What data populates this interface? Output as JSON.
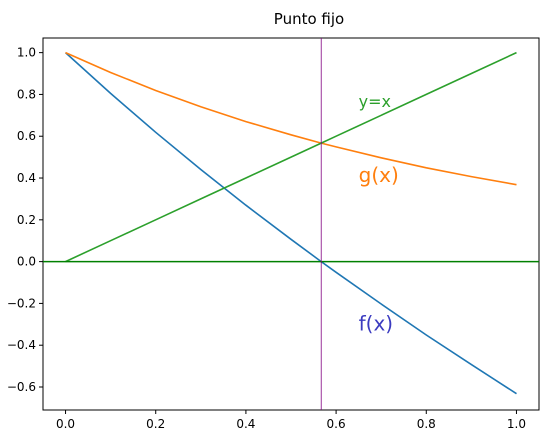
{
  "chart_data": {
    "type": "line",
    "title": "Punto fijo",
    "xlabel": "",
    "ylabel": "",
    "xlim": [
      -0.05,
      1.05
    ],
    "ylim": [
      -0.71,
      1.07
    ],
    "grid": false,
    "xticks": [
      0.0,
      0.2,
      0.4,
      0.6,
      0.8,
      1.0
    ],
    "xtick_labels": [
      "0.0",
      "0.2",
      "0.4",
      "0.6",
      "0.8",
      "1.0"
    ],
    "yticks": [
      -0.6,
      -0.4,
      -0.2,
      0.0,
      0.2,
      0.4,
      0.6,
      0.8,
      1.0
    ],
    "ytick_labels": [
      "−0.6",
      "−0.4",
      "−0.2",
      "0.0",
      "0.2",
      "0.4",
      "0.6",
      "0.8",
      "1.0"
    ],
    "x": [
      0.0,
      0.1,
      0.2,
      0.3,
      0.4,
      0.5,
      0.567,
      0.6,
      0.7,
      0.8,
      0.9,
      1.0
    ],
    "series": [
      {
        "id": "f",
        "color": "#1f77b4",
        "values": [
          1.0,
          0.805,
          0.619,
          0.441,
          0.27,
          0.107,
          0.0,
          -0.051,
          -0.203,
          -0.351,
          -0.493,
          -0.632
        ]
      },
      {
        "id": "g",
        "color": "#ff7f0e",
        "values": [
          1.0,
          0.905,
          0.819,
          0.741,
          0.67,
          0.607,
          0.567,
          0.549,
          0.497,
          0.449,
          0.407,
          0.368
        ]
      },
      {
        "id": "y",
        "color": "#2ca02c",
        "values": [
          0.0,
          0.1,
          0.2,
          0.3,
          0.4,
          0.5,
          0.567,
          0.6,
          0.7,
          0.8,
          0.9,
          1.0
        ]
      }
    ],
    "hline": {
      "y": 0.0,
      "color": "#008000"
    },
    "vline": {
      "x": 0.567,
      "color": "#800080"
    },
    "annotations": [
      {
        "text": "y=x",
        "x": 0.65,
        "y": 0.74,
        "color": "#2ca02c",
        "size": 16
      },
      {
        "text": "g(x)",
        "x": 0.65,
        "y": 0.38,
        "color": "#ff7f0e",
        "size": 20
      },
      {
        "text": "f(x)",
        "x": 0.65,
        "y": -0.33,
        "color": "#3b3bc0",
        "size": 20
      }
    ]
  }
}
